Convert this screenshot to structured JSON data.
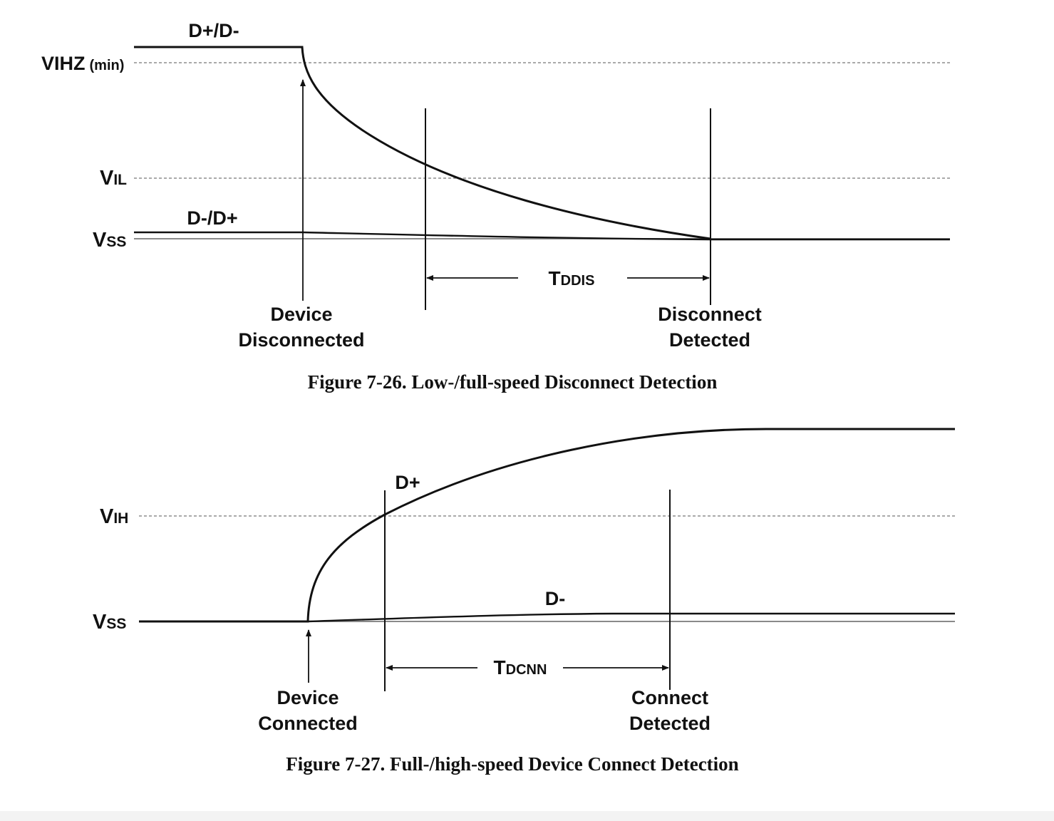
{
  "figure_26": {
    "signal_top": "D+/D-",
    "signal_bottom": "D-/D+",
    "level_vihz": {
      "main": "VIHZ",
      "suffix": "(min)"
    },
    "level_vil": {
      "main": "V",
      "sub": "IL"
    },
    "level_vss": {
      "main": "V",
      "sub": "SS"
    },
    "timing": {
      "main": "T",
      "sub": "DDIS"
    },
    "event_left": [
      "Device",
      "Disconnected"
    ],
    "event_right": [
      "Disconnect",
      "Detected"
    ],
    "caption": "Figure 7-26.  Low-/full-speed Disconnect Detection"
  },
  "figure_27": {
    "signal_top": "D+",
    "signal_bottom": "D-",
    "level_vih": {
      "main": "V",
      "sub": "IH"
    },
    "level_vss": {
      "main": "V",
      "sub": "SS"
    },
    "timing": {
      "main": "T",
      "sub": "DCNN"
    },
    "event_left": [
      "Device",
      "Connected"
    ],
    "event_right": [
      "Connect",
      "Detected"
    ],
    "caption": "Figure 7-27.  Full-/high-speed Device Connect Detection"
  }
}
